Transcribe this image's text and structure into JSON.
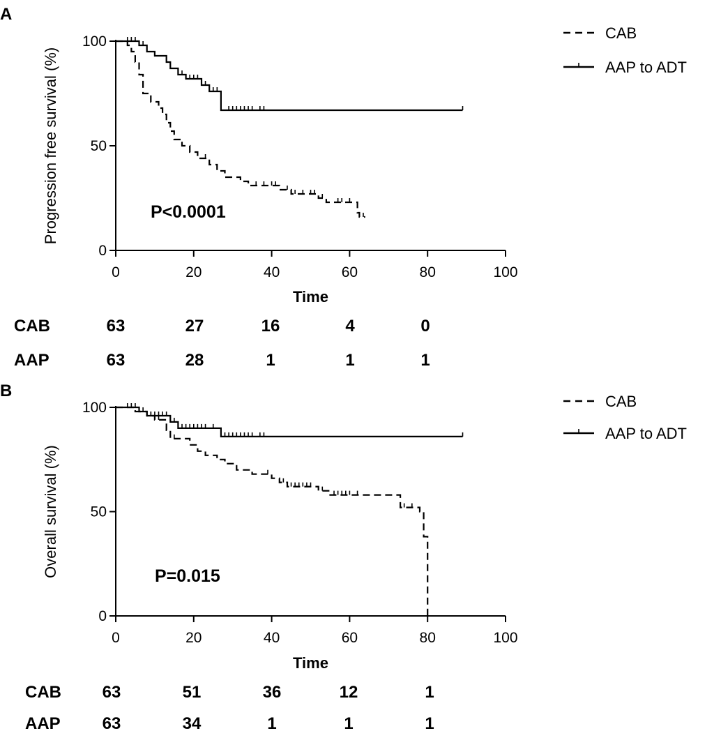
{
  "chart_data": [
    {
      "type": "line",
      "panel_label": "A",
      "ylabel": "Progression free survival (%)",
      "xlabel": "Time",
      "xlim": [
        0,
        100
      ],
      "ylim": [
        0,
        100
      ],
      "xticks": [
        0,
        20,
        40,
        60,
        80,
        100
      ],
      "yticks": [
        0,
        50,
        100
      ],
      "annotation": "P<0.0001",
      "legend_position": "top-right",
      "series": [
        {
          "name": "CAB",
          "style": "dashed",
          "points": [
            [
              0,
              100
            ],
            [
              3,
              100
            ],
            [
              3,
              98
            ],
            [
              4,
              98
            ],
            [
              4,
              95
            ],
            [
              5,
              95
            ],
            [
              5,
              90
            ],
            [
              6,
              90
            ],
            [
              6,
              84
            ],
            [
              7,
              84
            ],
            [
              7,
              75
            ],
            [
              9,
              75
            ],
            [
              9,
              71
            ],
            [
              11,
              71
            ],
            [
              11,
              68
            ],
            [
              12,
              68
            ],
            [
              12,
              65
            ],
            [
              13,
              65
            ],
            [
              13,
              61
            ],
            [
              14,
              61
            ],
            [
              14,
              57
            ],
            [
              15,
              57
            ],
            [
              15,
              53
            ],
            [
              17,
              53
            ],
            [
              17,
              50
            ],
            [
              19,
              50
            ],
            [
              19,
              47
            ],
            [
              21,
              47
            ],
            [
              21,
              44
            ],
            [
              24,
              44
            ],
            [
              24,
              41
            ],
            [
              26,
              41
            ],
            [
              26,
              38
            ],
            [
              28,
              38
            ],
            [
              28,
              35
            ],
            [
              32,
              35
            ],
            [
              32,
              33
            ],
            [
              34,
              33
            ],
            [
              34,
              31
            ],
            [
              42,
              31
            ],
            [
              42,
              29
            ],
            [
              45,
              29
            ],
            [
              45,
              27
            ],
            [
              52,
              27
            ],
            [
              52,
              25
            ],
            [
              54,
              25
            ],
            [
              54,
              23
            ],
            [
              62,
              23
            ],
            [
              62,
              18
            ],
            [
              62.5,
              18
            ],
            [
              62.5,
              16
            ],
            [
              64,
              16
            ]
          ],
          "censor_times": [
            17,
            23,
            36,
            38,
            40,
            41,
            44,
            46,
            48,
            50,
            51,
            53,
            57,
            58,
            60,
            63.5
          ]
        },
        {
          "name": "AAP to ADT",
          "style": "solid",
          "points": [
            [
              0,
              100
            ],
            [
              6,
              100
            ],
            [
              6,
              98
            ],
            [
              8,
              98
            ],
            [
              8,
              95
            ],
            [
              10,
              95
            ],
            [
              10,
              93
            ],
            [
              13,
              93
            ],
            [
              13,
              90
            ],
            [
              14,
              90
            ],
            [
              14,
              87
            ],
            [
              16,
              87
            ],
            [
              16,
              84
            ],
            [
              18,
              84
            ],
            [
              18,
              82
            ],
            [
              22,
              82
            ],
            [
              22,
              79
            ],
            [
              24,
              79
            ],
            [
              24,
              76
            ],
            [
              27,
              76
            ],
            [
              27,
              67
            ],
            [
              89,
              67
            ]
          ],
          "censor_times": [
            3,
            4,
            5,
            6,
            7,
            8,
            13,
            17,
            19,
            20,
            21,
            23,
            25,
            26,
            29,
            30,
            31,
            32,
            33,
            34,
            35,
            37,
            38,
            89
          ]
        }
      ],
      "risk_table": {
        "times": [
          0,
          20,
          40,
          60,
          80
        ],
        "rows": [
          {
            "label": "CAB",
            "values": [
              "63",
              "27",
              "16",
              "4",
              "0"
            ]
          },
          {
            "label": "AAP",
            "values": [
              "63",
              "28",
              "1",
              "1",
              "1"
            ]
          }
        ]
      }
    },
    {
      "type": "line",
      "panel_label": "B",
      "ylabel": "Overall survival (%)",
      "xlabel": "Time",
      "xlim": [
        0,
        100
      ],
      "ylim": [
        0,
        100
      ],
      "xticks": [
        0,
        20,
        40,
        60,
        80,
        100
      ],
      "yticks": [
        0,
        50,
        100
      ],
      "annotation": "P=0.015",
      "legend_position": "top-right",
      "series": [
        {
          "name": "CAB",
          "style": "dashed",
          "points": [
            [
              0,
              100
            ],
            [
              5,
              100
            ],
            [
              5,
              98
            ],
            [
              8,
              98
            ],
            [
              8,
              96
            ],
            [
              10,
              96
            ],
            [
              10,
              94
            ],
            [
              13,
              94
            ],
            [
              13,
              89
            ],
            [
              14,
              89
            ],
            [
              14,
              85
            ],
            [
              19,
              85
            ],
            [
              19,
              82
            ],
            [
              21,
              82
            ],
            [
              21,
              79
            ],
            [
              23,
              79
            ],
            [
              23,
              77
            ],
            [
              26,
              77
            ],
            [
              26,
              75
            ],
            [
              28,
              75
            ],
            [
              28,
              73
            ],
            [
              31,
              73
            ],
            [
              31,
              70
            ],
            [
              35,
              70
            ],
            [
              35,
              68
            ],
            [
              40,
              68
            ],
            [
              40,
              66
            ],
            [
              42,
              66
            ],
            [
              42,
              64
            ],
            [
              44,
              64
            ],
            [
              44,
              62
            ],
            [
              52,
              62
            ],
            [
              52,
              60
            ],
            [
              55,
              60
            ],
            [
              55,
              58
            ],
            [
              73,
              58
            ],
            [
              73,
              52
            ],
            [
              78,
              52
            ],
            [
              78,
              50
            ],
            [
              79,
              50
            ],
            [
              79,
              38
            ],
            [
              80,
              38
            ],
            [
              80,
              0
            ]
          ],
          "censor_times": [
            6,
            9,
            11,
            13,
            15,
            39,
            43,
            45,
            46,
            47,
            48,
            49,
            50,
            53,
            56,
            57,
            58,
            59,
            60,
            62,
            74,
            76
          ]
        },
        {
          "name": "AAP to ADT",
          "style": "solid",
          "points": [
            [
              0,
              100
            ],
            [
              6,
              100
            ],
            [
              6,
              98
            ],
            [
              8,
              98
            ],
            [
              8,
              96
            ],
            [
              14,
              96
            ],
            [
              14,
              93
            ],
            [
              16,
              93
            ],
            [
              16,
              90
            ],
            [
              27,
              90
            ],
            [
              27,
              86
            ],
            [
              89,
              86
            ]
          ],
          "censor_times": [
            3,
            4,
            5,
            7,
            9,
            10,
            11,
            12,
            13,
            15,
            17,
            18,
            19,
            20,
            21,
            22,
            23,
            25,
            28,
            29,
            30,
            31,
            32,
            33,
            34,
            35,
            37,
            38,
            89
          ]
        }
      ],
      "risk_table": {
        "times": [
          0,
          20,
          40,
          60,
          80
        ],
        "rows": [
          {
            "label": "CAB",
            "values": [
              "63",
              "51",
              "36",
              "12",
              "1"
            ]
          },
          {
            "label": "AAP",
            "values": [
              "63",
              "34",
              "1",
              "1",
              "1"
            ]
          }
        ]
      }
    }
  ]
}
